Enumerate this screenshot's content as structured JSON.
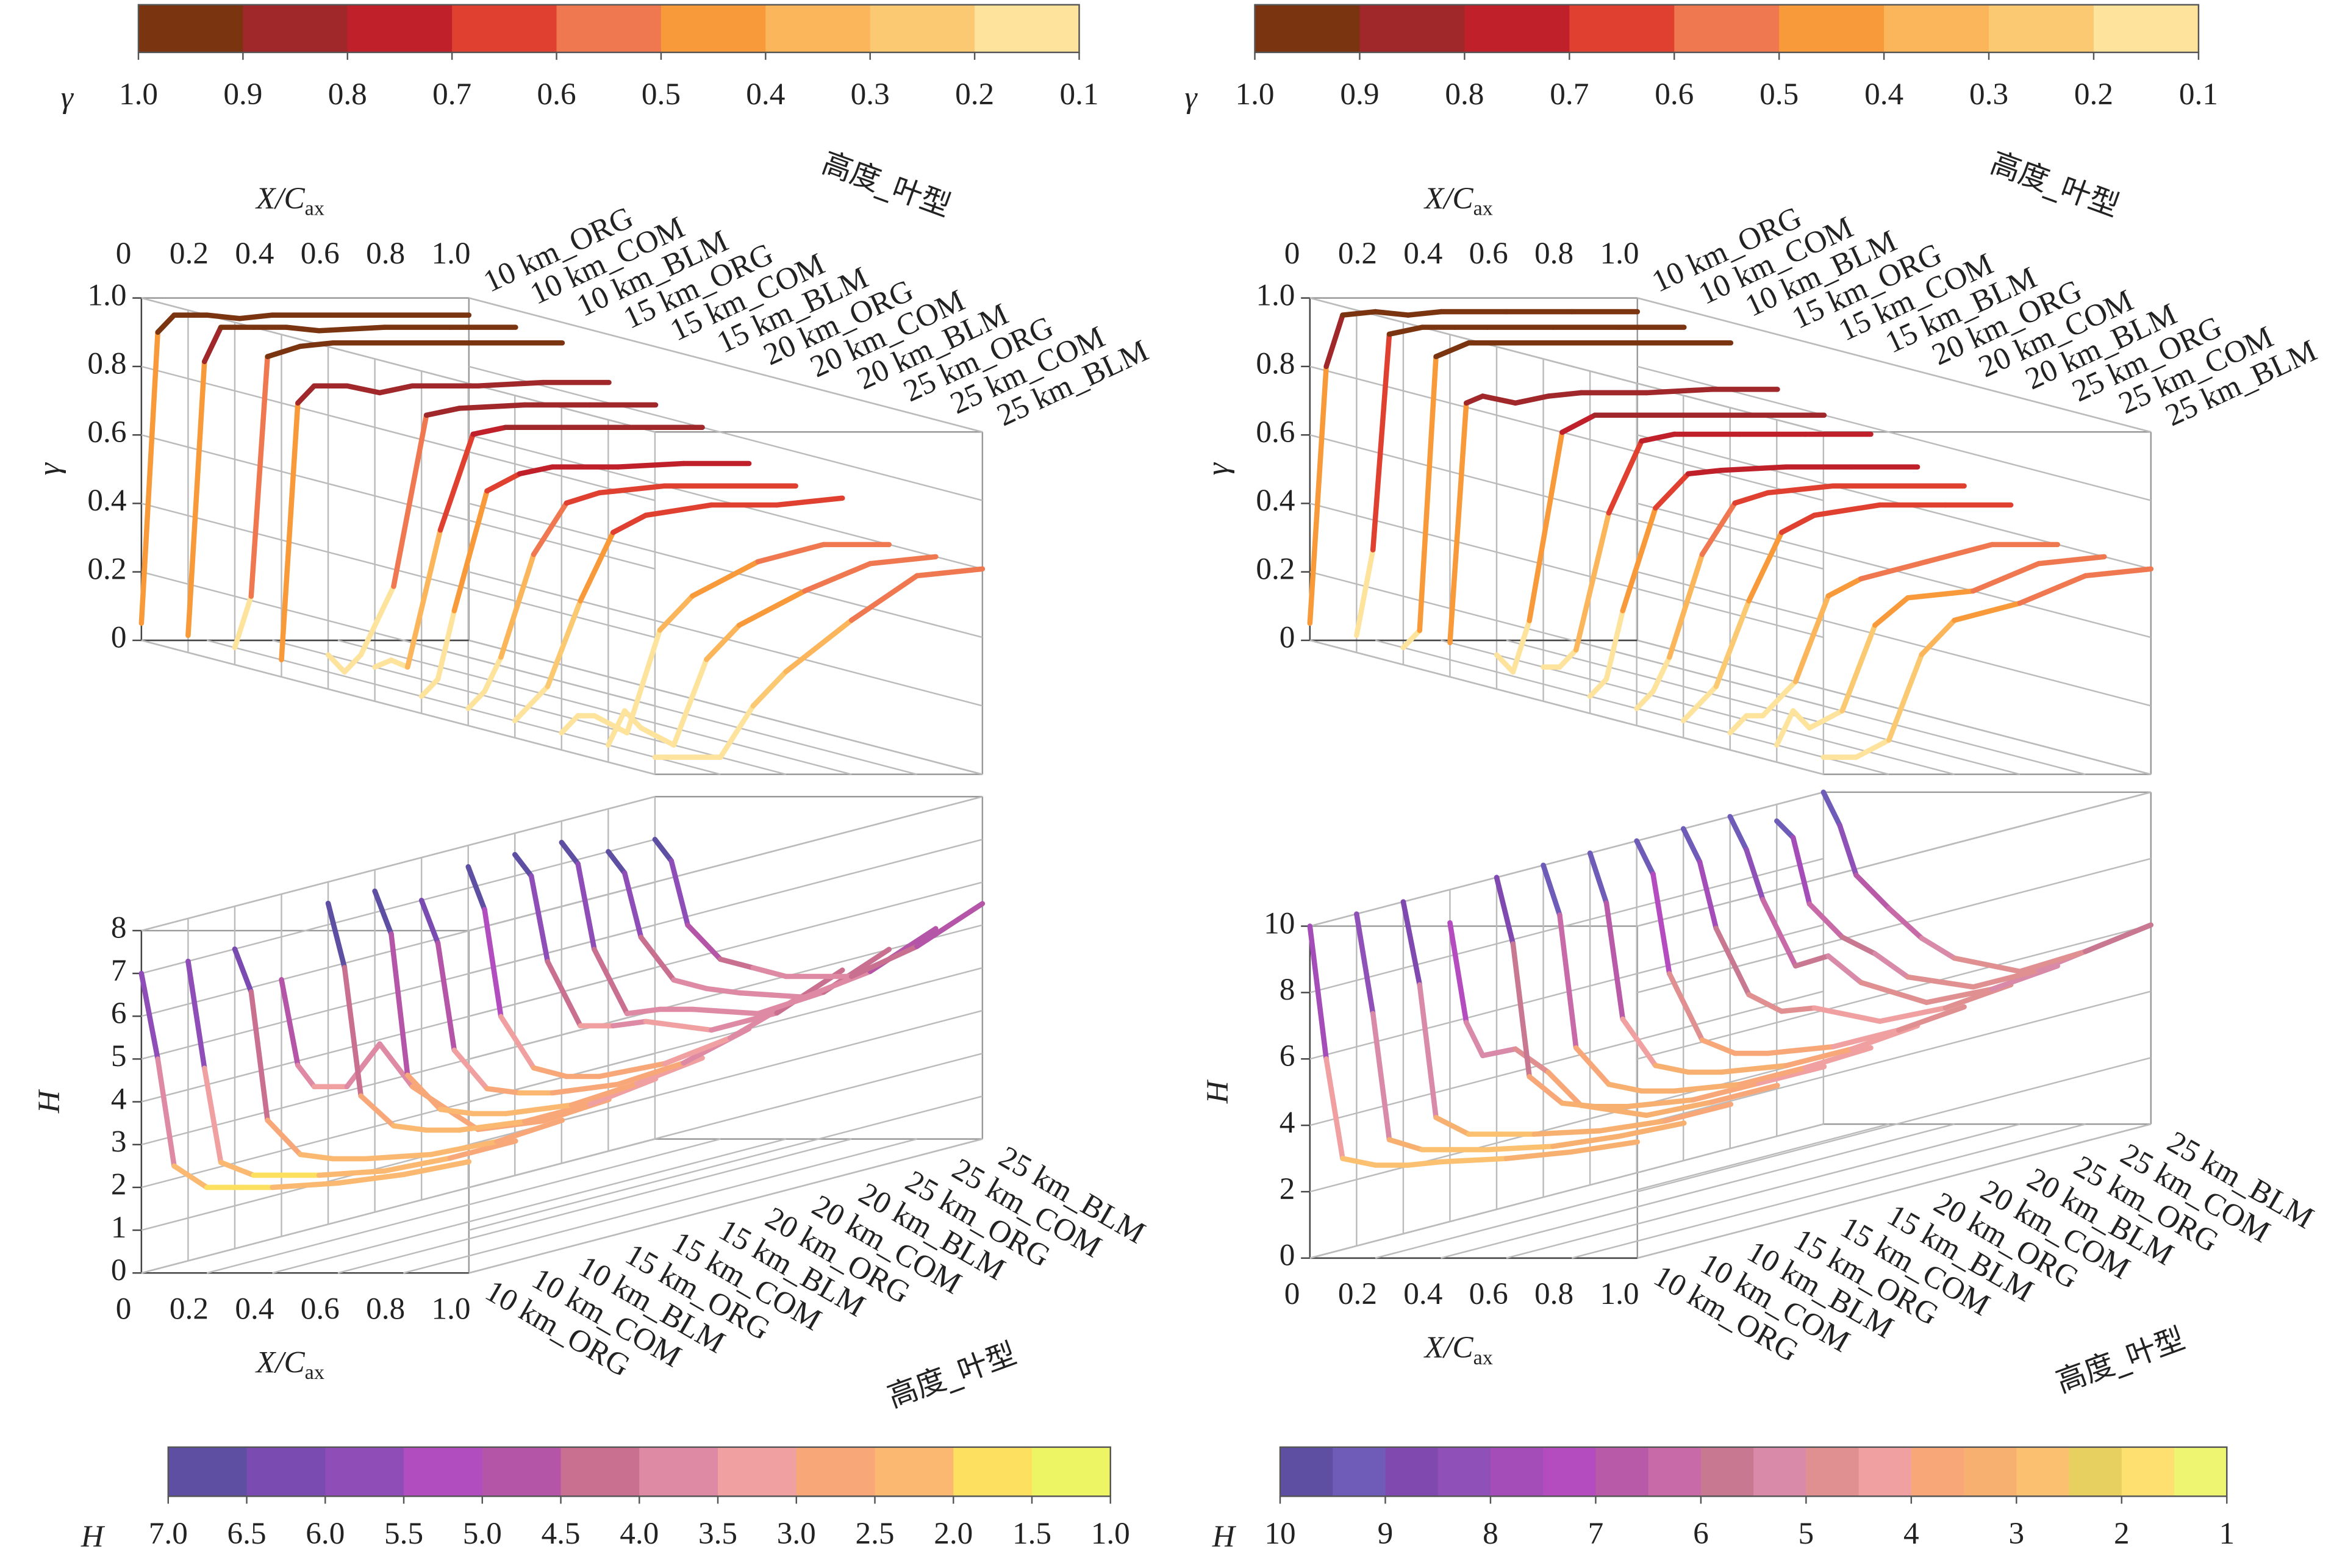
{
  "chart_data": [
    {
      "type": "colorbar",
      "label": "γ",
      "xlim": [
        1,
        0.1
      ],
      "xticks": [
        {
          "value": 1,
          "label": "1.0"
        },
        0.9,
        0.8,
        0.7,
        0.6,
        0.5,
        0.4,
        0.3,
        0.2,
        0.1
      ],
      "colors": [
        "#7b3410",
        "#a0272a",
        "#c0202a",
        "#e04030",
        "#f07850",
        "#f99a3a",
        "#fbb55a",
        "#fcc973",
        "#fde39c"
      ]
    },
    {
      "type": "colorbar",
      "label": "γ",
      "xlim": [
        1,
        0.1
      ],
      "xticks": [
        {
          "value": 1,
          "label": "1.0"
        },
        0.9,
        0.8,
        0.7,
        0.6,
        0.5,
        0.4,
        0.3,
        0.2,
        0.1
      ],
      "colors": [
        "#7b3410",
        "#a0272a",
        "#c0202a",
        "#e04030",
        "#f07850",
        "#f99a3a",
        "#fbb55a",
        "#fcc973",
        "#fde39c"
      ]
    },
    {
      "type": "line3d",
      "x_label": "X/C",
      "x_label_sub": "ax",
      "y_label": "γ",
      "z_label": "高度_叶型",
      "categories": [
        "10 km_ORG",
        "10 km_COM",
        "10 km_BLM",
        "15 km_ORG",
        "15 km_COM",
        "15 km_BLM",
        "20 km_ORG",
        "20 km_COM",
        "20 km_BLM",
        "25 km_ORG",
        "25 km_COM",
        "25 km_BLM"
      ],
      "x": [
        0,
        0.05,
        0.1,
        0.2,
        0.3,
        0.4,
        0.6,
        0.8,
        1
      ],
      "xlim": [
        0,
        1
      ],
      "xticks": [
        0,
        0.2,
        0.4,
        0.6,
        0.8,
        {
          "value": 1,
          "label": "1.0"
        }
      ],
      "ylim": [
        0,
        1
      ],
      "yticks": [
        0,
        0.2,
        0.4,
        0.6,
        0.8,
        {
          "value": 1,
          "label": "1.0"
        }
      ],
      "series": [
        {
          "values": [
            0.05,
            0.9,
            0.95,
            0.95,
            0.94,
            0.95,
            0.95,
            0.95,
            0.95
          ]
        },
        {
          "values": [
            0.05,
            0.85,
            0.95,
            0.95,
            0.95,
            0.94,
            0.95,
            0.95,
            0.95
          ]
        },
        {
          "values": [
            0.05,
            0.2,
            0.9,
            0.93,
            0.94,
            0.94,
            0.94,
            0.94,
            0.94
          ]
        },
        {
          "values": [
            0.05,
            0.8,
            0.85,
            0.85,
            0.83,
            0.85,
            0.85,
            0.86,
            0.86
          ]
        },
        {
          "values": [
            0.1,
            0.05,
            0.1,
            0.3,
            0.8,
            0.82,
            0.83,
            0.83,
            0.83
          ]
        },
        {
          "values": [
            0.1,
            0.12,
            0.1,
            0.5,
            0.78,
            0.8,
            0.8,
            0.8,
            0.8
          ]
        },
        {
          "values": [
            0.05,
            0.1,
            0.3,
            0.65,
            0.7,
            0.72,
            0.72,
            0.73,
            0.73
          ]
        },
        {
          "values": [
            0.05,
            0.1,
            0.2,
            0.5,
            0.65,
            0.68,
            0.7,
            0.7,
            0.7
          ]
        },
        {
          "values": [
            0.05,
            0.1,
            0.15,
            0.4,
            0.6,
            0.65,
            0.68,
            0.68,
            0.7
          ]
        },
        {
          "values": [
            0.05,
            0.1,
            0.1,
            0.05,
            0.35,
            0.45,
            0.55,
            0.6,
            0.6
          ]
        },
        {
          "values": [
            0.05,
            0.15,
            0.1,
            0.05,
            0.3,
            0.4,
            0.5,
            0.58,
            0.6
          ]
        },
        {
          "values": [
            0.05,
            0.05,
            0.05,
            0.05,
            0.2,
            0.3,
            0.45,
            0.58,
            0.6
          ]
        }
      ]
    },
    {
      "type": "line3d",
      "x_label": "X/C",
      "x_label_sub": "ax",
      "y_label": "γ",
      "z_label": "高度_叶型",
      "categories": [
        "10 km_ORG",
        "10 km_COM",
        "10 km_BLM",
        "15 km_ORG",
        "15 km_COM",
        "15 km_BLM",
        "20 km_ORG",
        "20 km_COM",
        "20 km_BLM",
        "25 km_ORG",
        "25 km_COM",
        "25 km_BLM"
      ],
      "x": [
        0,
        0.05,
        0.1,
        0.2,
        0.3,
        0.4,
        0.6,
        0.8,
        1
      ],
      "xlim": [
        0,
        1
      ],
      "xticks": [
        0,
        0.2,
        0.4,
        0.6,
        0.8,
        {
          "value": 1,
          "label": "1.0"
        }
      ],
      "ylim": [
        0,
        1
      ],
      "yticks": [
        0,
        0.2,
        0.4,
        0.6,
        0.8,
        {
          "value": 1,
          "label": "1.0"
        }
      ],
      "series": [
        {
          "values": [
            0.05,
            0.8,
            0.95,
            0.96,
            0.95,
            0.96,
            0.96,
            0.96,
            0.96
          ]
        },
        {
          "values": [
            0.05,
            0.3,
            0.93,
            0.95,
            0.95,
            0.95,
            0.95,
            0.95,
            0.95
          ]
        },
        {
          "values": [
            0.05,
            0.1,
            0.9,
            0.94,
            0.94,
            0.94,
            0.94,
            0.94,
            0.94
          ]
        },
        {
          "values": [
            0.1,
            0.8,
            0.82,
            0.8,
            0.82,
            0.83,
            0.83,
            0.84,
            0.84
          ]
        },
        {
          "values": [
            0.1,
            0.05,
            0.2,
            0.75,
            0.8,
            0.8,
            0.8,
            0.8,
            0.8
          ]
        },
        {
          "values": [
            0.1,
            0.1,
            0.15,
            0.55,
            0.76,
            0.78,
            0.78,
            0.78,
            0.78
          ]
        },
        {
          "values": [
            0.05,
            0.1,
            0.3,
            0.6,
            0.7,
            0.71,
            0.72,
            0.72,
            0.72
          ]
        },
        {
          "values": [
            0.05,
            0.1,
            0.2,
            0.5,
            0.65,
            0.68,
            0.7,
            0.7,
            0.7
          ]
        },
        {
          "values": [
            0.05,
            0.1,
            0.15,
            0.4,
            0.6,
            0.65,
            0.68,
            0.68,
            0.68
          ]
        },
        {
          "values": [
            0.05,
            0.1,
            0.1,
            0.2,
            0.45,
            0.5,
            0.55,
            0.6,
            0.6
          ]
        },
        {
          "values": [
            0.05,
            0.15,
            0.1,
            0.15,
            0.4,
            0.48,
            0.5,
            0.58,
            0.6
          ]
        },
        {
          "values": [
            0.05,
            0.05,
            0.05,
            0.1,
            0.35,
            0.45,
            0.5,
            0.58,
            0.6
          ]
        }
      ]
    },
    {
      "type": "line3d",
      "x_label": "X/C",
      "x_label_sub": "ax",
      "y_label": "H",
      "z_label": "高度_叶型",
      "categories": [
        "10 km_ORG",
        "10 km_COM",
        "10 km_BLM",
        "15 km_ORG",
        "15 km_COM",
        "15 km_BLM",
        "20 km_ORG",
        "20 km_COM",
        "20 km_BLM",
        "25 km_ORG",
        "25 km_COM",
        "25 km_BLM"
      ],
      "x": [
        0,
        0.05,
        0.1,
        0.2,
        0.3,
        0.4,
        0.6,
        0.8,
        1
      ],
      "xlim": [
        0,
        1
      ],
      "xticks": [
        0,
        0.2,
        0.4,
        0.6,
        0.8,
        {
          "value": 1,
          "label": "1.0"
        }
      ],
      "ylim": [
        0,
        8
      ],
      "yticks": [
        0,
        1,
        2,
        3,
        4,
        5,
        6,
        7,
        8
      ],
      "series": [
        {
          "values": [
            7,
            5,
            2.5,
            2,
            2,
            2,
            2.1,
            2.3,
            2.6
          ]
        },
        {
          "values": [
            7,
            4.5,
            2.3,
            2,
            2,
            2,
            2.1,
            2.4,
            2.8
          ]
        },
        {
          "values": [
            7,
            6,
            3,
            2.2,
            2.1,
            2.1,
            2.2,
            2.5,
            3
          ]
        },
        {
          "values": [
            6,
            4,
            3.5,
            3.5,
            4.5,
            3.5,
            2.5,
            2.7,
            3.2
          ]
        },
        {
          "values": [
            7.5,
            6,
            3,
            2.3,
            2.2,
            2.2,
            2.4,
            2.8,
            3.4
          ]
        },
        {
          "values": [
            7.5,
            6.5,
            3.2,
            2.4,
            2.3,
            2.3,
            2.5,
            3,
            3.6
          ]
        },
        {
          "values": [
            7,
            6,
            3.5,
            2.6,
            2.5,
            2.5,
            2.7,
            3.2,
            4
          ]
        },
        {
          "values": [
            7.5,
            6.5,
            4,
            2.8,
            2.6,
            2.6,
            2.9,
            3.5,
            4.4
          ]
        },
        {
          "values": [
            7.5,
            7,
            5,
            3.5,
            3.5,
            3.6,
            3.4,
            3.8,
            4.8
          ]
        },
        {
          "values": [
            7.5,
            7,
            5,
            3.5,
            3.6,
            3.6,
            3.5,
            4,
            5
          ]
        },
        {
          "values": [
            7,
            6.5,
            5,
            4,
            3.8,
            3.7,
            3.6,
            4.2,
            5.2
          ]
        },
        {
          "values": [
            7,
            6.5,
            5,
            4.2,
            4,
            3.8,
            3.8,
            4.5,
            5.5
          ]
        }
      ]
    },
    {
      "type": "line3d",
      "x_label": "X/C",
      "x_label_sub": "ax",
      "y_label": "H",
      "z_label": "高度_叶型",
      "categories": [
        "10 km_ORG",
        "10 km_COM",
        "10 km_BLM",
        "15 km_ORG",
        "15 km_COM",
        "15 km_BLM",
        "20 km_ORG",
        "20 km_COM",
        "20 km_BLM",
        "25 km_ORG",
        "25 km_COM",
        "25 km_BLM"
      ],
      "x": [
        0,
        0.05,
        0.1,
        0.2,
        0.3,
        0.4,
        0.6,
        0.8,
        1
      ],
      "xlim": [
        0,
        1
      ],
      "xticks": [
        0,
        0.2,
        0.4,
        0.6,
        0.8,
        {
          "value": 1,
          "label": "1.0"
        }
      ],
      "ylim": [
        0,
        10
      ],
      "yticks": [
        0,
        2,
        4,
        6,
        8,
        10
      ],
      "series": [
        {
          "values": [
            10,
            6,
            3,
            2.8,
            2.8,
            2.9,
            3,
            3.2,
            3.5
          ]
        },
        {
          "values": [
            10,
            7,
            3.2,
            2.9,
            2.9,
            2.9,
            3,
            3.3,
            3.7
          ]
        },
        {
          "values": [
            10,
            7.5,
            3.5,
            3,
            3,
            3,
            3.1,
            3.4,
            3.9
          ]
        },
        {
          "values": [
            9,
            6,
            5,
            5.2,
            4.5,
            3.5,
            3.2,
            3.6,
            4.1
          ]
        },
        {
          "values": [
            10,
            8,
            4,
            3.2,
            3.1,
            3.1,
            3.3,
            3.8,
            4.3
          ]
        },
        {
          "values": [
            10,
            8.5,
            4.5,
            3.4,
            3.2,
            3.2,
            3.4,
            3.9,
            4.5
          ]
        },
        {
          "values": [
            10,
            8.5,
            5,
            3.6,
            3.4,
            3.4,
            3.6,
            4.1,
            4.8
          ]
        },
        {
          "values": [
            10,
            9,
            6,
            4,
            3.6,
            3.6,
            3.8,
            4.3,
            5
          ]
        },
        {
          "values": [
            10,
            9,
            7,
            5,
            4.5,
            4.6,
            4.2,
            4.6,
            5.3
          ]
        },
        {
          "values": [
            10,
            9,
            7.5,
            5.5,
            5.8,
            5,
            4.4,
            4.8,
            5.5
          ]
        },
        {
          "values": [
            9.5,
            9,
            7,
            6,
            5.5,
            4.8,
            4.5,
            5,
            5.8
          ]
        },
        {
          "values": [
            10,
            9,
            7.5,
            6.5,
            5.6,
            5,
            4.6,
            5.2,
            6
          ]
        }
      ]
    },
    {
      "type": "colorbar",
      "label": "H",
      "xlim": [
        7,
        1
      ],
      "xticks": [
        {
          "value": 7,
          "label": "7.0"
        },
        6.5,
        {
          "value": 6,
          "label": "6.0"
        },
        5.5,
        {
          "value": 5,
          "label": "5.0"
        },
        4.5,
        {
          "value": 4,
          "label": "4.0"
        },
        3.5,
        {
          "value": 3,
          "label": "3.0"
        },
        2.5,
        {
          "value": 2,
          "label": "2.0"
        },
        1.5,
        {
          "value": 1,
          "label": "1.0"
        }
      ],
      "colors": [
        "#5e4fa2",
        "#7a4bb0",
        "#8f4db8",
        "#b24dc0",
        "#b455a8",
        "#c97090",
        "#de8aa5",
        "#f0a0a0",
        "#f8a878",
        "#fbb870",
        "#fde060",
        "#eef565"
      ]
    },
    {
      "type": "colorbar",
      "label": "H",
      "xlim": [
        10,
        1
      ],
      "xticks": [
        10,
        9,
        8,
        7,
        6,
        5,
        4,
        3,
        2,
        1
      ],
      "colors": [
        "#5e4fa2",
        "#6e5cb8",
        "#8049b0",
        "#8f50b8",
        "#a44cb8",
        "#b44cc0",
        "#b85aa8",
        "#c86aa8",
        "#c87890",
        "#d88aa8",
        "#e09090",
        "#f0a0a0",
        "#f8a878",
        "#f8b070",
        "#fbc070",
        "#e8d060",
        "#fde070",
        "#eef570"
      ]
    }
  ]
}
